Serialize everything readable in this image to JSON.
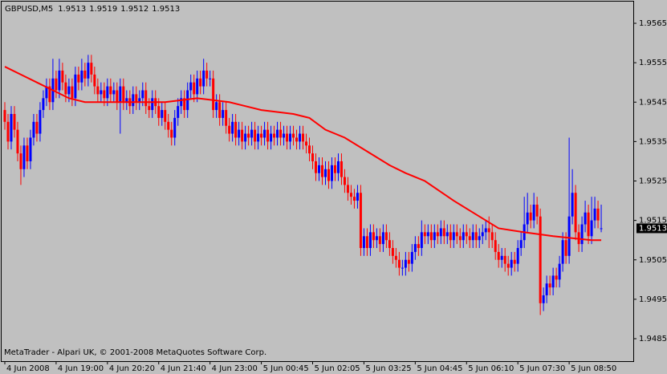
{
  "chart_data": {
    "type": "candlestick",
    "symbol": "GBPUSD,M5",
    "footer": "MetaTrader - Alpari UK, © 2001-2008 MetaQuotes Software Corp.",
    "up_color": "#0000ff",
    "down_color": "#ff0000",
    "open": [
      1.9543,
      1.954,
      1.9535,
      1.9542,
      1.9538,
      1.9532,
      1.9528,
      1.9534,
      1.953,
      1.9536,
      1.954,
      1.9537,
      1.9543,
      1.9546,
      1.9549,
      1.9545,
      1.9551,
      1.9548,
      1.9553,
      1.955,
      1.9547,
      1.9549,
      1.9546,
      1.9552,
      1.955,
      1.9553,
      1.9551,
      1.9555,
      1.9552,
      1.9549,
      1.9547,
      1.9548,
      1.9546,
      1.9549,
      1.9547,
      1.9548,
      1.9545,
      1.9549,
      1.9545,
      1.9546,
      1.9544,
      1.9547,
      1.9545,
      1.9546,
      1.9548,
      1.9544,
      1.9543,
      1.9546,
      1.9544,
      1.9541,
      1.9543,
      1.954,
      1.9538,
      1.9536,
      1.9541,
      1.9544,
      1.9546,
      1.9543,
      1.9548,
      1.955,
      1.9547,
      1.9551,
      1.9549,
      1.9553,
      1.9551,
      1.9551,
      1.9543,
      1.9545,
      1.9541,
      1.9543,
      1.9539,
      1.9537,
      1.954,
      1.9536,
      1.9538,
      1.9535,
      1.9537,
      1.9536,
      1.9538,
      1.9535,
      1.9537,
      1.9536,
      1.9538,
      1.9535,
      1.9537,
      1.9536,
      1.9538,
      1.9536,
      1.9537,
      1.9535,
      1.9537,
      1.9536,
      1.9535,
      1.9537,
      1.9535,
      1.9534,
      1.9532,
      1.953,
      1.9527,
      1.9529,
      1.9526,
      1.9528,
      1.9525,
      1.9529,
      1.9527,
      1.953,
      1.9526,
      1.9524,
      1.9522,
      1.9521,
      1.952,
      1.9522,
      1.9508,
      1.9511,
      1.9508,
      1.9512,
      1.951,
      1.9511,
      1.9509,
      1.9512,
      1.951,
      1.9508,
      1.9506,
      1.9505,
      1.9503,
      1.9503,
      1.9505,
      1.9504,
      1.9507,
      1.9509,
      1.9508,
      1.9512,
      1.9511,
      1.9512,
      1.951,
      1.9512,
      1.9511,
      1.9513,
      1.9511,
      1.9512,
      1.951,
      1.9512,
      1.9511,
      1.951,
      1.9512,
      1.9511,
      1.951,
      1.9512,
      1.951,
      1.9511,
      1.9512,
      1.9513,
      1.9512,
      1.951,
      1.9507,
      1.9505,
      1.9506,
      1.9504,
      1.9503,
      1.9505,
      1.9504,
      1.9508,
      1.951,
      1.9514,
      1.9517,
      1.9515,
      1.9519,
      1.9516,
      1.9494,
      1.9496,
      1.9499,
      1.9498,
      1.9501,
      1.95,
      1.9504,
      1.951,
      1.9506,
      1.9516,
      1.9522,
      1.9512,
      1.9509,
      1.9514,
      1.9517,
      1.9511,
      1.9515,
      1.9518,
      1.9513
    ],
    "high": [
      1.9545,
      1.9542,
      1.9544,
      1.9544,
      1.954,
      1.9534,
      1.9536,
      1.9536,
      1.9538,
      1.9542,
      1.9542,
      1.9545,
      1.9548,
      1.9551,
      1.9551,
      1.9556,
      1.9553,
      1.9556,
      1.9555,
      1.9552,
      1.9551,
      1.9551,
      1.9554,
      1.9554,
      1.9556,
      1.9555,
      1.9557,
      1.9557,
      1.9554,
      1.9551,
      1.955,
      1.955,
      1.9551,
      1.9551,
      1.955,
      1.955,
      1.9551,
      1.9551,
      1.9548,
      1.9548,
      1.9549,
      1.9549,
      1.9548,
      1.955,
      1.955,
      1.9546,
      1.9548,
      1.9548,
      1.9546,
      1.9545,
      1.9545,
      1.9542,
      1.954,
      1.9543,
      1.9546,
      1.9548,
      1.9548,
      1.955,
      1.9552,
      1.9552,
      1.9553,
      1.9553,
      1.9556,
      1.9555,
      1.9553,
      1.9553,
      1.9547,
      1.9547,
      1.9545,
      1.9545,
      1.9541,
      1.9542,
      1.9542,
      1.954,
      1.954,
      1.9539,
      1.9539,
      1.954,
      1.954,
      1.9539,
      1.9539,
      1.954,
      1.954,
      1.9539,
      1.9539,
      1.954,
      1.954,
      1.9539,
      1.9539,
      1.9539,
      1.9539,
      1.9538,
      1.9539,
      1.9539,
      1.9537,
      1.9536,
      1.9534,
      1.9532,
      1.9531,
      1.9531,
      1.953,
      1.953,
      1.9531,
      1.9531,
      1.9532,
      1.9532,
      1.9528,
      1.9526,
      1.9524,
      1.9523,
      1.9524,
      1.9524,
      1.9513,
      1.9513,
      1.9514,
      1.9514,
      1.9513,
      1.9513,
      1.9514,
      1.9514,
      1.9512,
      1.951,
      1.9508,
      1.9507,
      1.9505,
      1.9507,
      1.9507,
      1.9509,
      1.9511,
      1.9511,
      1.9515,
      1.9514,
      1.9514,
      1.9514,
      1.9514,
      1.9514,
      1.9515,
      1.9515,
      1.9514,
      1.9514,
      1.9514,
      1.9514,
      1.9513,
      1.9514,
      1.9514,
      1.9513,
      1.9514,
      1.9514,
      1.9513,
      1.9514,
      1.9515,
      1.9516,
      1.9514,
      1.9512,
      1.9509,
      1.9508,
      1.9508,
      1.9506,
      1.9507,
      1.9507,
      1.951,
      1.9512,
      1.9521,
      1.9522,
      1.9519,
      1.9522,
      1.9521,
      1.9518,
      1.9498,
      1.9501,
      1.9501,
      1.9503,
      1.9503,
      1.9506,
      1.9512,
      1.9512,
      1.9536,
      1.9528,
      1.9524,
      1.9514,
      1.9516,
      1.952,
      1.9519,
      1.9521,
      1.9521,
      1.952,
      1.9519
    ],
    "low": [
      1.9538,
      1.9533,
      1.9533,
      1.9536,
      1.953,
      1.9524,
      1.9526,
      1.9528,
      1.9528,
      1.9534,
      1.9535,
      1.9535,
      1.9541,
      1.9544,
      1.9543,
      1.9543,
      1.9546,
      1.9546,
      1.9548,
      1.9545,
      1.9545,
      1.9544,
      1.9544,
      1.9548,
      1.9548,
      1.9549,
      1.9549,
      1.955,
      1.9547,
      1.9545,
      1.9545,
      1.9544,
      1.9544,
      1.9545,
      1.9545,
      1.9543,
      1.9537,
      1.9543,
      1.9543,
      1.9542,
      1.9542,
      1.9543,
      1.9543,
      1.9544,
      1.9542,
      1.9541,
      1.9541,
      1.9542,
      1.9539,
      1.9539,
      1.9538,
      1.9536,
      1.9534,
      1.9534,
      1.9539,
      1.9542,
      1.9541,
      1.9541,
      1.9546,
      1.9545,
      1.9545,
      1.9547,
      1.9547,
      1.9549,
      1.9549,
      1.9541,
      1.9541,
      1.9539,
      1.9539,
      1.9537,
      1.9535,
      1.9535,
      1.9534,
      1.9534,
      1.9533,
      1.9533,
      1.9534,
      1.9534,
      1.9533,
      1.9533,
      1.9534,
      1.9534,
      1.9533,
      1.9533,
      1.9534,
      1.9534,
      1.9534,
      1.9534,
      1.9533,
      1.9533,
      1.9534,
      1.9533,
      1.9533,
      1.9533,
      1.9532,
      1.953,
      1.9528,
      1.9525,
      1.9525,
      1.9524,
      1.9524,
      1.9523,
      1.9523,
      1.9525,
      1.9525,
      1.9524,
      1.9522,
      1.952,
      1.9519,
      1.9518,
      1.9518,
      1.9506,
      1.9506,
      1.9506,
      1.9506,
      1.9508,
      1.9508,
      1.9507,
      1.9507,
      1.9508,
      1.9506,
      1.9504,
      1.9503,
      1.9501,
      1.9501,
      1.9501,
      1.9502,
      1.9502,
      1.9505,
      1.9506,
      1.9506,
      1.9509,
      1.9509,
      1.9508,
      1.9508,
      1.9509,
      1.9509,
      1.9509,
      1.9509,
      1.9508,
      1.9508,
      1.9509,
      1.9508,
      1.9508,
      1.9509,
      1.9508,
      1.9508,
      1.9508,
      1.9508,
      1.9509,
      1.951,
      1.9508,
      1.9508,
      1.9505,
      1.9503,
      1.9503,
      1.9502,
      1.9501,
      1.9501,
      1.9502,
      1.9502,
      1.9506,
      1.9508,
      1.9512,
      1.9513,
      1.9513,
      1.9514,
      1.9491,
      1.9492,
      1.9494,
      1.9496,
      1.9496,
      1.9498,
      1.9498,
      1.9502,
      1.9504,
      1.9504,
      1.9514,
      1.951,
      1.9507,
      1.9507,
      1.9512,
      1.9509,
      1.9509,
      1.9513,
      1.9513,
      1.9512
    ],
    "close": [
      1.954,
      1.9535,
      1.9542,
      1.9538,
      1.9532,
      1.9528,
      1.9534,
      1.953,
      1.9536,
      1.954,
      1.9537,
      1.9543,
      1.9546,
      1.9549,
      1.9545,
      1.9551,
      1.9548,
      1.9553,
      1.955,
      1.9547,
      1.9549,
      1.9546,
      1.9552,
      1.955,
      1.9553,
      1.9551,
      1.9555,
      1.9552,
      1.9549,
      1.9547,
      1.9548,
      1.9546,
      1.9549,
      1.9547,
      1.9548,
      1.9545,
      1.9549,
      1.9545,
      1.9546,
      1.9544,
      1.9547,
      1.9545,
      1.9546,
      1.9548,
      1.9544,
      1.9543,
      1.9546,
      1.9544,
      1.9541,
      1.9543,
      1.954,
      1.9538,
      1.9536,
      1.9541,
      1.9544,
      1.9546,
      1.9543,
      1.9548,
      1.955,
      1.9547,
      1.9551,
      1.9549,
      1.9553,
      1.9551,
      1.9551,
      1.9543,
      1.9545,
      1.9541,
      1.9543,
      1.9539,
      1.9537,
      1.954,
      1.9536,
      1.9538,
      1.9535,
      1.9537,
      1.9536,
      1.9538,
      1.9535,
      1.9537,
      1.9536,
      1.9538,
      1.9535,
      1.9537,
      1.9536,
      1.9538,
      1.9536,
      1.9537,
      1.9535,
      1.9537,
      1.9536,
      1.9535,
      1.9537,
      1.9535,
      1.9534,
      1.9532,
      1.953,
      1.9527,
      1.9529,
      1.9526,
      1.9528,
      1.9525,
      1.9529,
      1.9527,
      1.953,
      1.9526,
      1.9524,
      1.9522,
      1.9521,
      1.952,
      1.9522,
      1.9508,
      1.9511,
      1.9508,
      1.9512,
      1.951,
      1.9511,
      1.9509,
      1.9512,
      1.951,
      1.9508,
      1.9506,
      1.9505,
      1.9503,
      1.9503,
      1.9505,
      1.9504,
      1.9507,
      1.9509,
      1.9508,
      1.9512,
      1.9511,
      1.9512,
      1.951,
      1.9512,
      1.9511,
      1.9513,
      1.9511,
      1.9512,
      1.951,
      1.9512,
      1.9511,
      1.951,
      1.9512,
      1.9511,
      1.951,
      1.9512,
      1.951,
      1.9511,
      1.9512,
      1.9513,
      1.9512,
      1.951,
      1.9507,
      1.9505,
      1.9506,
      1.9504,
      1.9503,
      1.9505,
      1.9504,
      1.9508,
      1.951,
      1.9514,
      1.9517,
      1.9515,
      1.9519,
      1.9516,
      1.9494,
      1.9496,
      1.9499,
      1.9498,
      1.9501,
      1.95,
      1.9504,
      1.951,
      1.9506,
      1.9516,
      1.9522,
      1.9512,
      1.9509,
      1.9514,
      1.9517,
      1.9511,
      1.9515,
      1.9518,
      1.9515,
      1.9513
    ],
    "moving_average": {
      "color": "#ff0000",
      "x": [
        0,
        5,
        10,
        15,
        20,
        25,
        30,
        40,
        50,
        60,
        70,
        75,
        80,
        90,
        95,
        100,
        106,
        114,
        120,
        125,
        131,
        140,
        146,
        154,
        162,
        171,
        183,
        186
      ],
      "values": [
        1.9554,
        1.9552,
        1.955,
        1.9548,
        1.9546,
        1.9545,
        1.9545,
        1.9545,
        1.9545,
        1.9546,
        1.9545,
        1.9544,
        1.9543,
        1.9542,
        1.9541,
        1.9538,
        1.9536,
        1.9532,
        1.9529,
        1.9527,
        1.9525,
        1.952,
        1.9517,
        1.9513,
        1.9512,
        1.9511,
        1.951,
        1.951
      ]
    },
    "ylim": [
      1.94793,
      1.95705
    ],
    "yticks": [
      1.9485,
      1.9495,
      1.9505,
      1.9515,
      1.9525,
      1.9535,
      1.9545,
      1.9555,
      1.9565
    ],
    "xlim": [
      -1,
      196
    ],
    "xticks": [
      {
        "value": 0,
        "label": "4 Jun 2008"
      },
      {
        "value": 16,
        "label": "4 Jun 19:00"
      },
      {
        "value": 32,
        "label": "4 Jun 20:20"
      },
      {
        "value": 48,
        "label": "4 Jun 21:40"
      },
      {
        "value": 64,
        "label": "4 Jun 23:00"
      },
      {
        "value": 80,
        "label": "5 Jun 00:45"
      },
      {
        "value": 96,
        "label": "5 Jun 02:05"
      },
      {
        "value": 112,
        "label": "5 Jun 03:25"
      },
      {
        "value": 128,
        "label": "5 Jun 04:45"
      },
      {
        "value": 144,
        "label": "5 Jun 06:10"
      },
      {
        "value": 160,
        "label": "5 Jun 07:30"
      },
      {
        "value": 176,
        "label": "5 Jun 08:50"
      }
    ],
    "grid": false
  }
}
